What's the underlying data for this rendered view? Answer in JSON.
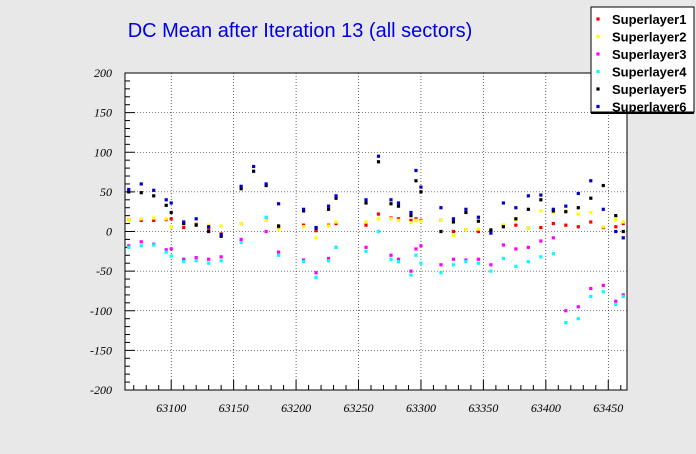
{
  "chart_data": {
    "type": "scatter",
    "title": "DC Mean after Iteration 13 (all sectors)",
    "xlabel": "",
    "ylabel": "",
    "xlim": [
      63063,
      63465
    ],
    "ylim": [
      -200,
      200
    ],
    "x_ticks": [
      63100,
      63150,
      63200,
      63250,
      63300,
      63350,
      63400,
      63450
    ],
    "y_ticks": [
      -200,
      -150,
      -100,
      -50,
      0,
      50,
      100,
      150,
      200
    ],
    "grid": true,
    "legend_position": "top-right",
    "series": [
      {
        "name": "Superlayer1",
        "color": "#ff0000",
        "points": [
          [
            63066,
            15
          ],
          [
            63076,
            14
          ],
          [
            63086,
            14
          ],
          [
            63096,
            15
          ],
          [
            63100,
            16
          ],
          [
            63110,
            5
          ],
          [
            63120,
            9
          ],
          [
            63130,
            4
          ],
          [
            63140,
            -3
          ],
          [
            63156,
            10
          ],
          [
            63176,
            16
          ],
          [
            63186,
            6
          ],
          [
            63206,
            8
          ],
          [
            63216,
            1
          ],
          [
            63226,
            8
          ],
          [
            63232,
            10
          ],
          [
            63256,
            8
          ],
          [
            63266,
            22
          ],
          [
            63276,
            17
          ],
          [
            63282,
            16
          ],
          [
            63292,
            14
          ],
          [
            63296,
            16
          ],
          [
            63300,
            14
          ],
          [
            63316,
            14
          ],
          [
            63326,
            0
          ],
          [
            63336,
            2
          ],
          [
            63346,
            0
          ],
          [
            63356,
            0
          ],
          [
            63366,
            8
          ],
          [
            63376,
            8
          ],
          [
            63386,
            4
          ],
          [
            63396,
            5
          ],
          [
            63406,
            10
          ],
          [
            63416,
            8
          ],
          [
            63426,
            6
          ],
          [
            63436,
            12
          ],
          [
            63446,
            5
          ],
          [
            63456,
            6
          ],
          [
            63462,
            10
          ]
        ]
      },
      {
        "name": "Superlayer2",
        "color": "#ffff00",
        "points": [
          [
            63066,
            15
          ],
          [
            63076,
            16
          ],
          [
            63086,
            17
          ],
          [
            63096,
            16
          ],
          [
            63100,
            6
          ],
          [
            63110,
            11
          ],
          [
            63120,
            8
          ],
          [
            63130,
            8
          ],
          [
            63140,
            7
          ],
          [
            63156,
            10
          ],
          [
            63176,
            14
          ],
          [
            63186,
            2
          ],
          [
            63206,
            6
          ],
          [
            63216,
            -8
          ],
          [
            63226,
            7
          ],
          [
            63232,
            12
          ],
          [
            63256,
            12
          ],
          [
            63266,
            16
          ],
          [
            63276,
            16
          ],
          [
            63282,
            14
          ],
          [
            63292,
            11
          ],
          [
            63296,
            14
          ],
          [
            63300,
            13
          ],
          [
            63316,
            14
          ],
          [
            63326,
            -5
          ],
          [
            63336,
            2
          ],
          [
            63346,
            3
          ],
          [
            63356,
            -2
          ],
          [
            63366,
            8
          ],
          [
            63376,
            14
          ],
          [
            63386,
            4
          ],
          [
            63396,
            26
          ],
          [
            63406,
            24
          ],
          [
            63416,
            26
          ],
          [
            63426,
            22
          ],
          [
            63436,
            24
          ],
          [
            63446,
            6
          ],
          [
            63456,
            15
          ],
          [
            63462,
            12
          ]
        ]
      },
      {
        "name": "Superlayer3",
        "color": "#ff00ff",
        "points": [
          [
            63066,
            -18
          ],
          [
            63076,
            -13
          ],
          [
            63086,
            -16
          ],
          [
            63096,
            -23
          ],
          [
            63100,
            -22
          ],
          [
            63110,
            -35
          ],
          [
            63120,
            -33
          ],
          [
            63130,
            -35
          ],
          [
            63140,
            -32
          ],
          [
            63156,
            -10
          ],
          [
            63176,
            0
          ],
          [
            63186,
            -26
          ],
          [
            63206,
            -36
          ],
          [
            63216,
            -52
          ],
          [
            63226,
            -34
          ],
          [
            63232,
            -20
          ],
          [
            63256,
            -20
          ],
          [
            63266,
            0
          ],
          [
            63276,
            -30
          ],
          [
            63282,
            -35
          ],
          [
            63292,
            -50
          ],
          [
            63296,
            -22
          ],
          [
            63300,
            -18
          ],
          [
            63316,
            -42
          ],
          [
            63326,
            -35
          ],
          [
            63336,
            -36
          ],
          [
            63346,
            -35
          ],
          [
            63356,
            -42
          ],
          [
            63366,
            -17
          ],
          [
            63376,
            -22
          ],
          [
            63386,
            -20
          ],
          [
            63396,
            -12
          ],
          [
            63406,
            -8
          ],
          [
            63416,
            -100
          ],
          [
            63426,
            -95
          ],
          [
            63436,
            -72
          ],
          [
            63446,
            -68
          ],
          [
            63456,
            -88
          ],
          [
            63462,
            -80
          ]
        ]
      },
      {
        "name": "Superlayer4",
        "color": "#00ffff",
        "points": [
          [
            63066,
            -20
          ],
          [
            63076,
            -18
          ],
          [
            63086,
            -17
          ],
          [
            63096,
            -26
          ],
          [
            63100,
            -31
          ],
          [
            63110,
            -38
          ],
          [
            63120,
            -37
          ],
          [
            63130,
            -40
          ],
          [
            63140,
            -37
          ],
          [
            63156,
            -14
          ],
          [
            63176,
            18
          ],
          [
            63186,
            -30
          ],
          [
            63206,
            -38
          ],
          [
            63216,
            -58
          ],
          [
            63226,
            -37
          ],
          [
            63232,
            -20
          ],
          [
            63256,
            -25
          ],
          [
            63266,
            0
          ],
          [
            63276,
            -35
          ],
          [
            63282,
            -38
          ],
          [
            63292,
            -55
          ],
          [
            63296,
            -30
          ],
          [
            63300,
            -40
          ],
          [
            63316,
            -52
          ],
          [
            63326,
            -42
          ],
          [
            63336,
            -38
          ],
          [
            63346,
            -40
          ],
          [
            63356,
            -50
          ],
          [
            63366,
            -34
          ],
          [
            63376,
            -44
          ],
          [
            63386,
            -38
          ],
          [
            63396,
            -32
          ],
          [
            63406,
            -28
          ],
          [
            63416,
            -115
          ],
          [
            63426,
            -110
          ],
          [
            63436,
            -82
          ],
          [
            63446,
            -76
          ],
          [
            63456,
            -92
          ],
          [
            63462,
            -82
          ]
        ]
      },
      {
        "name": "Superlayer5",
        "color": "#000000",
        "points": [
          [
            63066,
            50
          ],
          [
            63076,
            49
          ],
          [
            63086,
            45
          ],
          [
            63096,
            33
          ],
          [
            63100,
            24
          ],
          [
            63110,
            10
          ],
          [
            63120,
            8
          ],
          [
            63130,
            0
          ],
          [
            63140,
            -6
          ],
          [
            63156,
            54
          ],
          [
            63166,
            76
          ],
          [
            63176,
            58
          ],
          [
            63186,
            7
          ],
          [
            63206,
            26
          ],
          [
            63216,
            4
          ],
          [
            63226,
            28
          ],
          [
            63232,
            42
          ],
          [
            63256,
            36
          ],
          [
            63266,
            88
          ],
          [
            63276,
            35
          ],
          [
            63282,
            32
          ],
          [
            63292,
            20
          ],
          [
            63296,
            64
          ],
          [
            63300,
            50
          ],
          [
            63316,
            0
          ],
          [
            63326,
            12
          ],
          [
            63336,
            24
          ],
          [
            63346,
            13
          ],
          [
            63356,
            2
          ],
          [
            63366,
            6
          ],
          [
            63376,
            16
          ],
          [
            63386,
            28
          ],
          [
            63396,
            40
          ],
          [
            63406,
            26
          ],
          [
            63416,
            25
          ],
          [
            63426,
            30
          ],
          [
            63436,
            42
          ],
          [
            63446,
            58
          ],
          [
            63456,
            20
          ],
          [
            63462,
            0
          ]
        ]
      },
      {
        "name": "Superlayer6",
        "color": "#0000cc",
        "points": [
          [
            63066,
            53
          ],
          [
            63076,
            60
          ],
          [
            63086,
            52
          ],
          [
            63096,
            40
          ],
          [
            63100,
            36
          ],
          [
            63110,
            12
          ],
          [
            63120,
            16
          ],
          [
            63130,
            6
          ],
          [
            63140,
            -4
          ],
          [
            63156,
            57
          ],
          [
            63166,
            82
          ],
          [
            63176,
            60
          ],
          [
            63186,
            35
          ],
          [
            63206,
            28
          ],
          [
            63216,
            5
          ],
          [
            63226,
            32
          ],
          [
            63232,
            45
          ],
          [
            63256,
            40
          ],
          [
            63266,
            95
          ],
          [
            63276,
            40
          ],
          [
            63282,
            36
          ],
          [
            63292,
            24
          ],
          [
            63296,
            77
          ],
          [
            63300,
            56
          ],
          [
            63316,
            30
          ],
          [
            63326,
            16
          ],
          [
            63336,
            28
          ],
          [
            63346,
            18
          ],
          [
            63356,
            -2
          ],
          [
            63366,
            36
          ],
          [
            63376,
            30
          ],
          [
            63386,
            45
          ],
          [
            63396,
            46
          ],
          [
            63406,
            28
          ],
          [
            63416,
            32
          ],
          [
            63426,
            48
          ],
          [
            63436,
            64
          ],
          [
            63446,
            28
          ],
          [
            63456,
            0
          ],
          [
            63462,
            -8
          ]
        ]
      }
    ]
  }
}
